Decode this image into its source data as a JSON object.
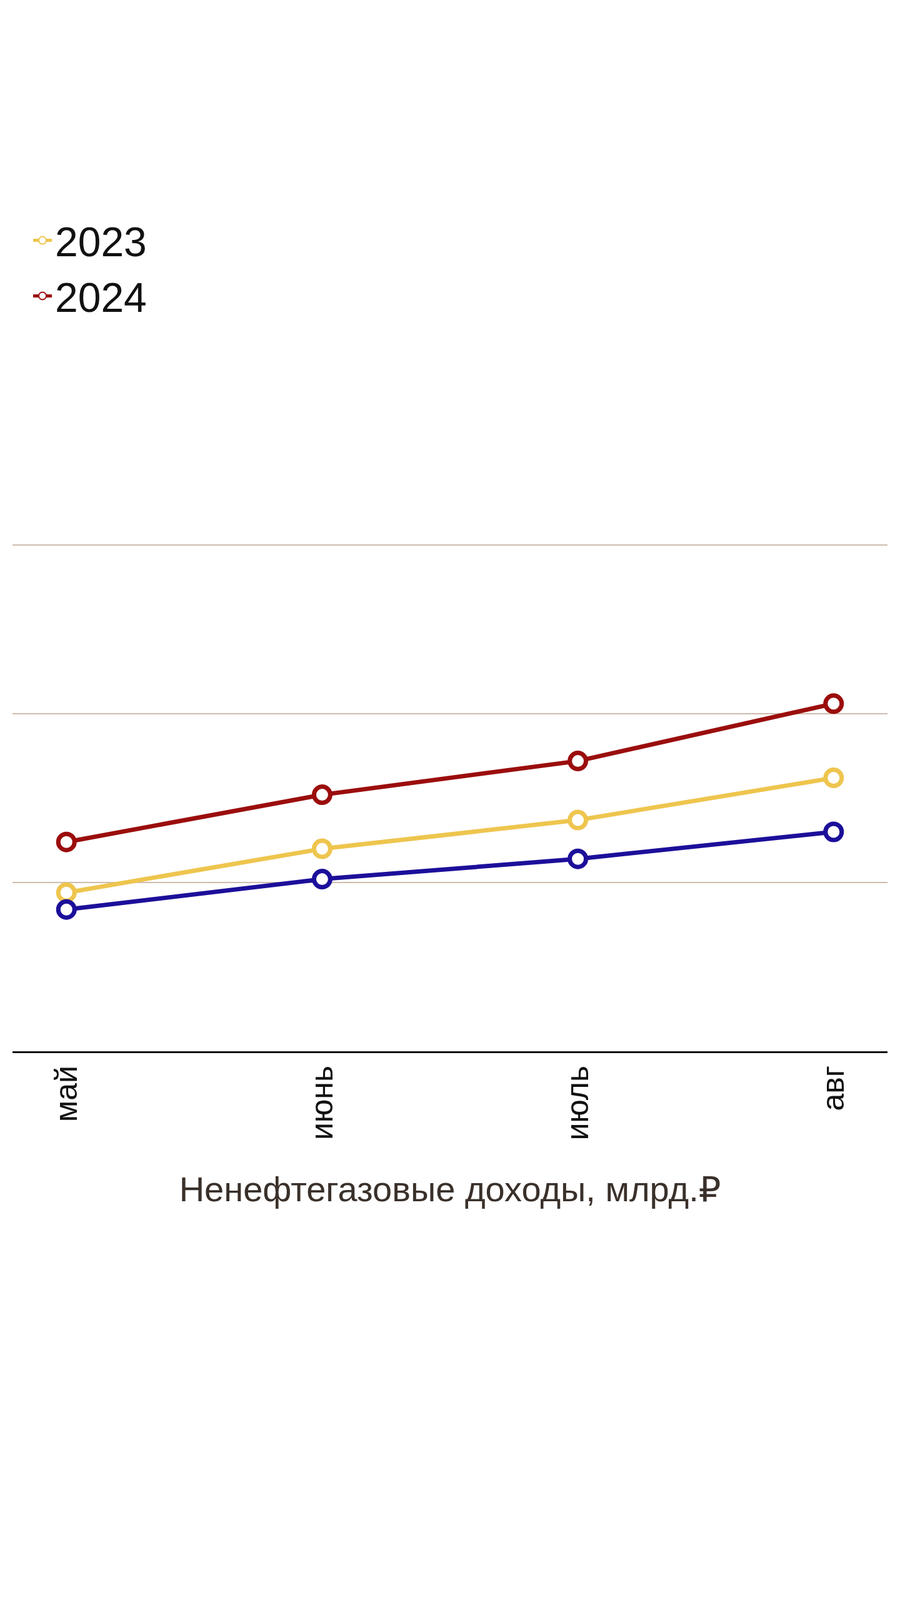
{
  "chart_data": {
    "type": "line",
    "x_label": "Ненефтегазовые доходы, млрд.₽",
    "categories": [
      "май",
      "июнь",
      "июль",
      "авг"
    ],
    "series": [
      {
        "name": "2023",
        "color": "#eec54e",
        "values": [
          0.94,
          1.2,
          1.37,
          1.62
        ],
        "marker": "circle"
      },
      {
        "name": "2024",
        "color": "#9b0d0d",
        "values": [
          1.24,
          1.52,
          1.72,
          2.06
        ],
        "marker": "circle"
      },
      {
        "color": "#1c0f9a",
        "values": [
          0.84,
          1.02,
          1.14,
          1.3
        ],
        "marker": "circle"
      }
    ],
    "ylim": [
      0,
      4
    ],
    "yticks": [
      0,
      1,
      2,
      3,
      4
    ],
    "grid": true,
    "legend": "top",
    "tick_labels": "x"
  }
}
